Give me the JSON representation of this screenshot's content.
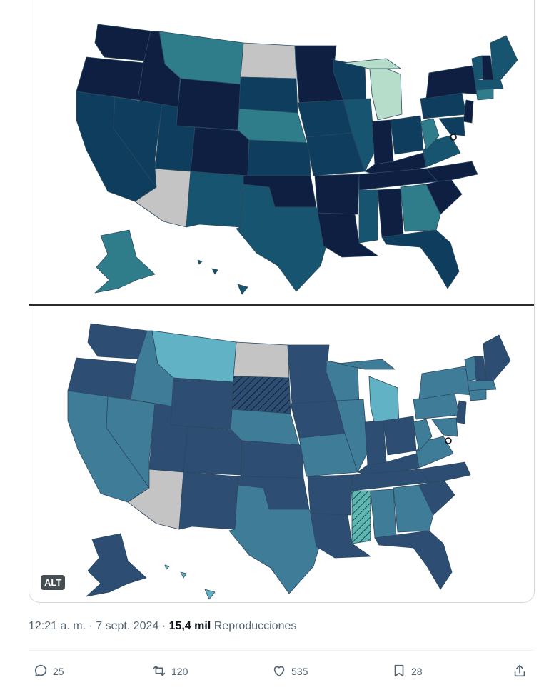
{
  "media": {
    "alt_badge": "ALT",
    "colors": {
      "top": {
        "darkest": "#0e1f42",
        "dark": "#0f3d5e",
        "mid": "#16546f",
        "teal": "#2f7d8a",
        "grey": "#c4c4c4",
        "mint": "#b6dcca"
      },
      "bottom": {
        "dark": "#2d4e72",
        "mid": "#3e7c98",
        "light": "#62b2c6",
        "grey": "#c4c4c4"
      }
    }
  },
  "tweet": {
    "time": "12:21 a. m.",
    "dot": "·",
    "date": "7 sept. 2024",
    "views_count": "15,4 mil",
    "views_label": "Reproducciones"
  },
  "actions": {
    "replies": "25",
    "reposts": "120",
    "likes": "535",
    "bookmarks": "28"
  }
}
